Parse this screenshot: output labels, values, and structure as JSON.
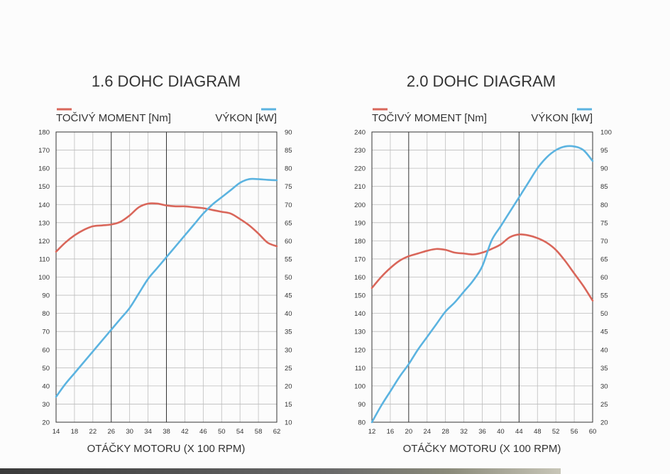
{
  "colors": {
    "torque": "#d9665a",
    "power": "#5bb3e0",
    "grid": "#bdbdbd",
    "major_grid": "#333333",
    "text": "#333333"
  },
  "chart_data": [
    {
      "type": "line",
      "title": "1.6 DOHC DIAGRAM",
      "xlabel": "OTÁČKY MOTORU (X 100 RPM)",
      "legend_left": "TOČIVÝ MOMENT [Nm]",
      "legend_right": "VÝKON [kW]",
      "x_ticks": [
        "14",
        "18",
        "22",
        "26",
        "30",
        "34",
        "38",
        "42",
        "46",
        "50",
        "54",
        "58",
        "62"
      ],
      "y_left_ticks": [
        "20",
        "30",
        "40",
        "50",
        "60",
        "70",
        "80",
        "90",
        "100",
        "110",
        "120",
        "130",
        "140",
        "150",
        "160",
        "170",
        "180"
      ],
      "y_right_ticks": [
        "10",
        "15",
        "20",
        "25",
        "30",
        "35",
        "40",
        "45",
        "50",
        "55",
        "60",
        "65",
        "70",
        "75",
        "80",
        "85",
        "90"
      ],
      "xlim": [
        14,
        62
      ],
      "ylim_left": [
        20,
        180
      ],
      "ylim_right": [
        10,
        90
      ],
      "major_x": [
        26,
        38
      ],
      "grid": true,
      "series": [
        {
          "name": "TOČIVÝ MOMENT [Nm]",
          "axis": "left",
          "x": [
            14,
            16,
            18,
            20,
            22,
            24,
            26,
            28,
            30,
            32,
            34,
            36,
            38,
            40,
            42,
            44,
            46,
            48,
            50,
            52,
            54,
            56,
            58,
            60,
            62
          ],
          "values": [
            114,
            119,
            123,
            126,
            128,
            128.5,
            129,
            130.5,
            134,
            138.5,
            140.5,
            140.5,
            139.5,
            139,
            139,
            138.5,
            138,
            137,
            136,
            135,
            132,
            128.5,
            124,
            119,
            117
          ]
        },
        {
          "name": "VÝKON [kW]",
          "axis": "right",
          "x": [
            14,
            16,
            18,
            20,
            22,
            24,
            26,
            28,
            30,
            32,
            34,
            36,
            38,
            40,
            42,
            44,
            46,
            48,
            50,
            52,
            54,
            56,
            58,
            60,
            62
          ],
          "values": [
            17,
            20.5,
            23.5,
            26.5,
            29.5,
            32.5,
            35.5,
            38.5,
            41.5,
            45.5,
            49.5,
            52.5,
            55.5,
            58.5,
            61.5,
            64.5,
            67.5,
            70,
            72,
            74,
            76,
            77,
            77,
            76.8,
            76.7
          ]
        }
      ]
    },
    {
      "type": "line",
      "title": "2.0 DOHC DIAGRAM",
      "xlabel": "OTÁČKY MOTORU (X 100 RPM)",
      "legend_left": "TOČIVÝ MOMENT [Nm]",
      "legend_right": "VÝKON [kW]",
      "x_ticks": [
        "12",
        "16",
        "20",
        "24",
        "28",
        "32",
        "36",
        "40",
        "44",
        "48",
        "52",
        "56",
        "60"
      ],
      "y_left_ticks": [
        "80",
        "90",
        "100",
        "110",
        "120",
        "130",
        "140",
        "150",
        "160",
        "170",
        "180",
        "190",
        "200",
        "210",
        "220",
        "230",
        "240"
      ],
      "y_right_ticks": [
        "20",
        "25",
        "30",
        "35",
        "40",
        "45",
        "50",
        "55",
        "60",
        "65",
        "70",
        "75",
        "80",
        "85",
        "90",
        "95",
        "100"
      ],
      "xlim": [
        12,
        60
      ],
      "ylim_left": [
        80,
        240
      ],
      "ylim_right": [
        20,
        100
      ],
      "major_x": [
        20,
        44
      ],
      "grid": true,
      "series": [
        {
          "name": "TOČIVÝ MOMENT [Nm]",
          "axis": "left",
          "x": [
            12,
            14,
            16,
            18,
            20,
            22,
            24,
            26,
            28,
            30,
            32,
            34,
            36,
            38,
            40,
            42,
            44,
            46,
            48,
            50,
            52,
            54,
            56,
            58,
            60
          ],
          "values": [
            154,
            160,
            165,
            169,
            171.5,
            173,
            174.5,
            175.5,
            175,
            173.5,
            173,
            172.5,
            173.5,
            175.5,
            178,
            182,
            183.5,
            183,
            181.5,
            179,
            175,
            169,
            162,
            155,
            147
          ]
        },
        {
          "name": "VÝKON [kW]",
          "axis": "right",
          "x": [
            12,
            14,
            16,
            18,
            20,
            22,
            24,
            26,
            28,
            30,
            32,
            34,
            36,
            38,
            40,
            42,
            44,
            46,
            48,
            50,
            52,
            54,
            56,
            58,
            60
          ],
          "values": [
            20,
            24.5,
            28.5,
            32.5,
            36,
            40,
            43.5,
            47,
            50.5,
            53,
            56,
            59,
            63,
            70,
            74,
            78,
            82,
            86,
            90,
            93,
            95,
            96,
            96,
            95,
            92
          ]
        }
      ]
    }
  ]
}
